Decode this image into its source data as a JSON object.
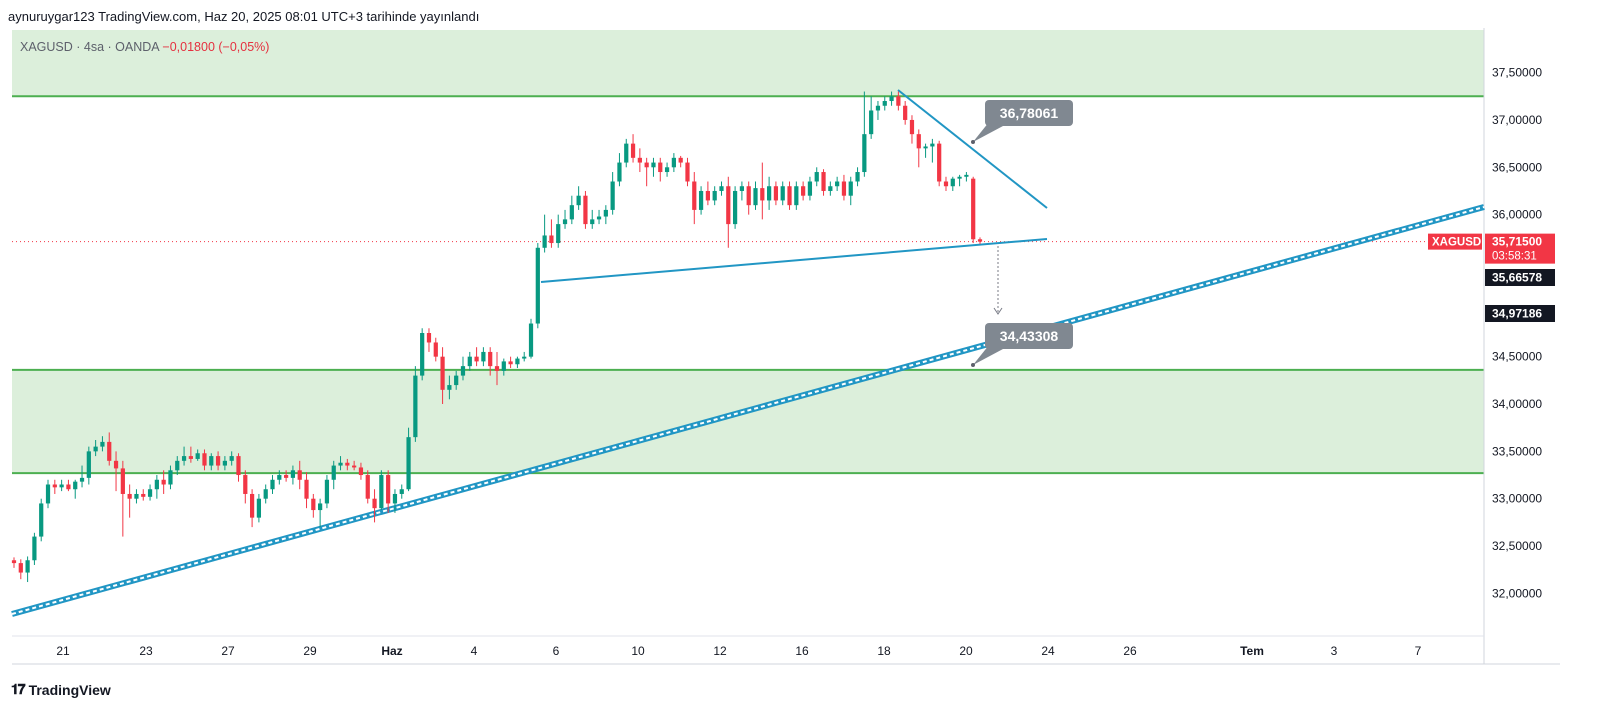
{
  "header": {
    "publisher": "aynuruygar123 TradingView.com, Haz 20, 2025 08:01 UTC+3 tarihinde yayınlandı"
  },
  "symbol_info": {
    "name": "XAGUSD · 4sa · OANDA",
    "change": "−0,01800 (−0,05%)"
  },
  "footer": {
    "brand": "TradingView"
  },
  "colors": {
    "up": "#089981",
    "down": "#f23645",
    "zone_fill": "#dcefdb",
    "zone_line": "#4caf50",
    "trend": "#2196c4",
    "callout": "#808891"
  },
  "chart_data": {
    "type": "candlestick",
    "ylim": [
      31.55,
      37.95
    ],
    "y_ticks": [
      "37,50000",
      "37,00000",
      "36,50000",
      "36,00000",
      "34,50000",
      "34,00000",
      "33,50000",
      "33,00000",
      "32,50000",
      "32,00000"
    ],
    "x_ticks": [
      "21",
      "23",
      "27",
      "29",
      "Haz",
      "4",
      "6",
      "10",
      "12",
      "16",
      "18",
      "20",
      "24",
      "26",
      "Tem",
      "3",
      "7"
    ],
    "zones": [
      {
        "from": 37.25,
        "to": 37.95
      },
      {
        "from": 33.27,
        "to": 34.36
      }
    ],
    "support_resistance_lines": [
      37.25,
      34.36,
      33.27
    ],
    "annotations": [
      {
        "label": "36,78061",
        "value": 36.78061
      },
      {
        "label": "34,43308",
        "value": 34.43308
      }
    ],
    "price_labels": [
      {
        "label": "XAGUSD",
        "kind": "symbol"
      },
      {
        "label": "35,71500",
        "value": 35.715,
        "kind": "last"
      },
      {
        "label": "03:58:31",
        "kind": "countdown"
      },
      {
        "label": "35,66578",
        "value": 35.66578,
        "kind": "mark"
      },
      {
        "label": "34,97186",
        "value": 34.97186,
        "kind": "mark"
      }
    ],
    "candles": [
      {
        "o": 32.35,
        "h": 32.38,
        "l": 32.27,
        "c": 32.32
      },
      {
        "o": 32.32,
        "h": 32.36,
        "l": 32.15,
        "c": 32.22
      },
      {
        "o": 32.22,
        "h": 32.39,
        "l": 32.12,
        "c": 32.35
      },
      {
        "o": 32.35,
        "h": 32.64,
        "l": 32.3,
        "c": 32.6
      },
      {
        "o": 32.6,
        "h": 33.0,
        "l": 32.55,
        "c": 32.95
      },
      {
        "o": 32.95,
        "h": 33.2,
        "l": 32.9,
        "c": 33.15
      },
      {
        "o": 33.15,
        "h": 33.2,
        "l": 33.05,
        "c": 33.12
      },
      {
        "o": 33.12,
        "h": 33.2,
        "l": 33.08,
        "c": 33.15
      },
      {
        "o": 33.15,
        "h": 33.2,
        "l": 33.08,
        "c": 33.1
      },
      {
        "o": 33.1,
        "h": 33.2,
        "l": 33.0,
        "c": 33.18
      },
      {
        "o": 33.18,
        "h": 33.35,
        "l": 33.12,
        "c": 33.22
      },
      {
        "o": 33.22,
        "h": 33.55,
        "l": 33.15,
        "c": 33.5
      },
      {
        "o": 33.5,
        "h": 33.62,
        "l": 33.45,
        "c": 33.55
      },
      {
        "o": 33.55,
        "h": 33.66,
        "l": 33.5,
        "c": 33.6
      },
      {
        "o": 33.6,
        "h": 33.7,
        "l": 33.35,
        "c": 33.4
      },
      {
        "o": 33.4,
        "h": 33.5,
        "l": 33.08,
        "c": 33.32
      },
      {
        "o": 33.32,
        "h": 33.4,
        "l": 32.6,
        "c": 33.05
      },
      {
        "o": 33.05,
        "h": 33.15,
        "l": 32.8,
        "c": 33.0
      },
      {
        "o": 33.0,
        "h": 33.1,
        "l": 32.95,
        "c": 33.05
      },
      {
        "o": 33.05,
        "h": 33.1,
        "l": 32.98,
        "c": 33.02
      },
      {
        "o": 33.02,
        "h": 33.15,
        "l": 32.98,
        "c": 33.1
      },
      {
        "o": 33.1,
        "h": 33.25,
        "l": 33.0,
        "c": 33.2
      },
      {
        "o": 33.2,
        "h": 33.3,
        "l": 33.05,
        "c": 33.15
      },
      {
        "o": 33.15,
        "h": 33.35,
        "l": 33.1,
        "c": 33.3
      },
      {
        "o": 33.3,
        "h": 33.45,
        "l": 33.25,
        "c": 33.4
      },
      {
        "o": 33.4,
        "h": 33.55,
        "l": 33.35,
        "c": 33.45
      },
      {
        "o": 33.45,
        "h": 33.55,
        "l": 33.38,
        "c": 33.42
      },
      {
        "o": 33.42,
        "h": 33.52,
        "l": 33.4,
        "c": 33.48
      },
      {
        "o": 33.48,
        "h": 33.52,
        "l": 33.3,
        "c": 33.35
      },
      {
        "o": 33.35,
        "h": 33.48,
        "l": 33.3,
        "c": 33.45
      },
      {
        "o": 33.45,
        "h": 33.5,
        "l": 33.3,
        "c": 33.35
      },
      {
        "o": 33.35,
        "h": 33.45,
        "l": 33.3,
        "c": 33.4
      },
      {
        "o": 33.4,
        "h": 33.5,
        "l": 33.35,
        "c": 33.45
      },
      {
        "o": 33.45,
        "h": 33.48,
        "l": 33.18,
        "c": 33.25
      },
      {
        "o": 33.25,
        "h": 33.3,
        "l": 32.95,
        "c": 33.05
      },
      {
        "o": 33.05,
        "h": 33.1,
        "l": 32.7,
        "c": 32.8
      },
      {
        "o": 32.8,
        "h": 33.05,
        "l": 32.75,
        "c": 33.0
      },
      {
        "o": 33.0,
        "h": 33.15,
        "l": 32.95,
        "c": 33.1
      },
      {
        "o": 33.1,
        "h": 33.25,
        "l": 33.05,
        "c": 33.2
      },
      {
        "o": 33.2,
        "h": 33.3,
        "l": 33.15,
        "c": 33.25
      },
      {
        "o": 33.25,
        "h": 33.3,
        "l": 33.18,
        "c": 33.22
      },
      {
        "o": 33.22,
        "h": 33.35,
        "l": 33.15,
        "c": 33.3
      },
      {
        "o": 33.3,
        "h": 33.4,
        "l": 33.1,
        "c": 33.2
      },
      {
        "o": 33.2,
        "h": 33.28,
        "l": 32.9,
        "c": 33.0
      },
      {
        "o": 33.0,
        "h": 33.05,
        "l": 32.8,
        "c": 32.88
      },
      {
        "o": 32.88,
        "h": 33.0,
        "l": 32.7,
        "c": 32.95
      },
      {
        "o": 32.95,
        "h": 33.25,
        "l": 32.9,
        "c": 33.2
      },
      {
        "o": 33.2,
        "h": 33.4,
        "l": 33.1,
        "c": 33.35
      },
      {
        "o": 33.35,
        "h": 33.45,
        "l": 33.3,
        "c": 33.38
      },
      {
        "o": 33.38,
        "h": 33.42,
        "l": 33.3,
        "c": 33.35
      },
      {
        "o": 33.35,
        "h": 33.4,
        "l": 33.3,
        "c": 33.33
      },
      {
        "o": 33.33,
        "h": 33.38,
        "l": 33.2,
        "c": 33.25
      },
      {
        "o": 33.25,
        "h": 33.3,
        "l": 32.95,
        "c": 33.0
      },
      {
        "o": 33.0,
        "h": 33.1,
        "l": 32.75,
        "c": 32.9
      },
      {
        "o": 32.9,
        "h": 33.3,
        "l": 32.88,
        "c": 33.25
      },
      {
        "o": 33.25,
        "h": 33.3,
        "l": 32.85,
        "c": 32.95
      },
      {
        "o": 32.95,
        "h": 33.1,
        "l": 32.85,
        "c": 33.05
      },
      {
        "o": 33.05,
        "h": 33.15,
        "l": 33.0,
        "c": 33.1
      },
      {
        "o": 33.1,
        "h": 33.75,
        "l": 33.08,
        "c": 33.65
      },
      {
        "o": 33.65,
        "h": 34.4,
        "l": 33.6,
        "c": 34.3
      },
      {
        "o": 34.3,
        "h": 34.8,
        "l": 34.25,
        "c": 34.75
      },
      {
        "o": 34.75,
        "h": 34.8,
        "l": 34.55,
        "c": 34.65
      },
      {
        "o": 34.65,
        "h": 34.7,
        "l": 34.45,
        "c": 34.5
      },
      {
        "o": 34.5,
        "h": 34.6,
        "l": 34.0,
        "c": 34.15
      },
      {
        "o": 34.15,
        "h": 34.3,
        "l": 34.05,
        "c": 34.2
      },
      {
        "o": 34.2,
        "h": 34.35,
        "l": 34.15,
        "c": 34.3
      },
      {
        "o": 34.3,
        "h": 34.5,
        "l": 34.25,
        "c": 34.4
      },
      {
        "o": 34.4,
        "h": 34.55,
        "l": 34.35,
        "c": 34.5
      },
      {
        "o": 34.5,
        "h": 34.6,
        "l": 34.4,
        "c": 34.45
      },
      {
        "o": 34.45,
        "h": 34.6,
        "l": 34.4,
        "c": 34.55
      },
      {
        "o": 34.55,
        "h": 34.6,
        "l": 34.3,
        "c": 34.4
      },
      {
        "o": 34.4,
        "h": 34.55,
        "l": 34.2,
        "c": 34.35
      },
      {
        "o": 34.35,
        "h": 34.48,
        "l": 34.3,
        "c": 34.45
      },
      {
        "o": 34.45,
        "h": 34.5,
        "l": 34.38,
        "c": 34.42
      },
      {
        "o": 34.42,
        "h": 34.5,
        "l": 34.38,
        "c": 34.48
      },
      {
        "o": 34.48,
        "h": 34.55,
        "l": 34.45,
        "c": 34.5
      },
      {
        "o": 34.5,
        "h": 34.9,
        "l": 34.48,
        "c": 34.85
      },
      {
        "o": 34.85,
        "h": 35.7,
        "l": 34.8,
        "c": 35.65
      },
      {
        "o": 35.65,
        "h": 36.0,
        "l": 35.6,
        "c": 35.78
      },
      {
        "o": 35.78,
        "h": 35.95,
        "l": 35.65,
        "c": 35.7
      },
      {
        "o": 35.7,
        "h": 36.0,
        "l": 35.65,
        "c": 35.9
      },
      {
        "o": 35.9,
        "h": 36.05,
        "l": 35.85,
        "c": 35.95
      },
      {
        "o": 35.95,
        "h": 36.2,
        "l": 35.9,
        "c": 36.1
      },
      {
        "o": 36.1,
        "h": 36.3,
        "l": 36.05,
        "c": 36.2
      },
      {
        "o": 36.2,
        "h": 36.25,
        "l": 35.85,
        "c": 35.9
      },
      {
        "o": 35.9,
        "h": 36.05,
        "l": 35.85,
        "c": 35.95
      },
      {
        "o": 35.95,
        "h": 36.05,
        "l": 35.9,
        "c": 35.98
      },
      {
        "o": 35.98,
        "h": 36.1,
        "l": 35.9,
        "c": 36.05
      },
      {
        "o": 36.05,
        "h": 36.45,
        "l": 36.0,
        "c": 36.35
      },
      {
        "o": 36.35,
        "h": 36.65,
        "l": 36.3,
        "c": 36.55
      },
      {
        "o": 36.55,
        "h": 36.8,
        "l": 36.5,
        "c": 36.75
      },
      {
        "o": 36.75,
        "h": 36.85,
        "l": 36.55,
        "c": 36.6
      },
      {
        "o": 36.6,
        "h": 36.7,
        "l": 36.45,
        "c": 36.55
      },
      {
        "o": 36.55,
        "h": 36.6,
        "l": 36.3,
        "c": 36.5
      },
      {
        "o": 36.5,
        "h": 36.6,
        "l": 36.4,
        "c": 36.55
      },
      {
        "o": 36.55,
        "h": 36.6,
        "l": 36.35,
        "c": 36.45
      },
      {
        "o": 36.45,
        "h": 36.55,
        "l": 36.4,
        "c": 36.5
      },
      {
        "o": 36.5,
        "h": 36.65,
        "l": 36.45,
        "c": 36.6
      },
      {
        "o": 36.6,
        "h": 36.62,
        "l": 36.5,
        "c": 36.55
      },
      {
        "o": 36.55,
        "h": 36.6,
        "l": 36.3,
        "c": 36.35
      },
      {
        "o": 36.35,
        "h": 36.45,
        "l": 35.9,
        "c": 36.05
      },
      {
        "o": 36.05,
        "h": 36.3,
        "l": 36.0,
        "c": 36.25
      },
      {
        "o": 36.25,
        "h": 36.35,
        "l": 36.1,
        "c": 36.15
      },
      {
        "o": 36.15,
        "h": 36.3,
        "l": 36.1,
        "c": 36.25
      },
      {
        "o": 36.25,
        "h": 36.35,
        "l": 36.2,
        "c": 36.3
      },
      {
        "o": 36.3,
        "h": 36.4,
        "l": 35.65,
        "c": 35.9
      },
      {
        "o": 35.9,
        "h": 36.3,
        "l": 35.85,
        "c": 36.25
      },
      {
        "o": 36.25,
        "h": 36.35,
        "l": 36.15,
        "c": 36.3
      },
      {
        "o": 36.3,
        "h": 36.35,
        "l": 36.0,
        "c": 36.1
      },
      {
        "o": 36.1,
        "h": 36.35,
        "l": 36.05,
        "c": 36.28
      },
      {
        "o": 36.28,
        "h": 36.55,
        "l": 35.95,
        "c": 36.15
      },
      {
        "o": 36.15,
        "h": 36.4,
        "l": 36.05,
        "c": 36.3
      },
      {
        "o": 36.3,
        "h": 36.35,
        "l": 36.1,
        "c": 36.15
      },
      {
        "o": 36.15,
        "h": 36.35,
        "l": 36.1,
        "c": 36.3
      },
      {
        "o": 36.3,
        "h": 36.35,
        "l": 36.05,
        "c": 36.1
      },
      {
        "o": 36.1,
        "h": 36.35,
        "l": 36.05,
        "c": 36.3
      },
      {
        "o": 36.3,
        "h": 36.35,
        "l": 36.15,
        "c": 36.2
      },
      {
        "o": 36.2,
        "h": 36.4,
        "l": 36.15,
        "c": 36.35
      },
      {
        "o": 36.35,
        "h": 36.5,
        "l": 36.3,
        "c": 36.45
      },
      {
        "o": 36.45,
        "h": 36.48,
        "l": 36.2,
        "c": 36.25
      },
      {
        "o": 36.25,
        "h": 36.35,
        "l": 36.2,
        "c": 36.3
      },
      {
        "o": 36.3,
        "h": 36.4,
        "l": 36.25,
        "c": 36.35
      },
      {
        "o": 36.35,
        "h": 36.42,
        "l": 36.15,
        "c": 36.2
      },
      {
        "o": 36.2,
        "h": 36.4,
        "l": 36.1,
        "c": 36.35
      },
      {
        "o": 36.35,
        "h": 36.5,
        "l": 36.3,
        "c": 36.45
      },
      {
        "o": 36.45,
        "h": 37.3,
        "l": 36.4,
        "c": 36.85
      },
      {
        "o": 36.85,
        "h": 37.25,
        "l": 36.8,
        "c": 37.1
      },
      {
        "o": 37.1,
        "h": 37.2,
        "l": 37.0,
        "c": 37.15
      },
      {
        "o": 37.15,
        "h": 37.25,
        "l": 37.1,
        "c": 37.2
      },
      {
        "o": 37.2,
        "h": 37.3,
        "l": 37.15,
        "c": 37.25
      },
      {
        "o": 37.25,
        "h": 37.3,
        "l": 37.1,
        "c": 37.15
      },
      {
        "o": 37.15,
        "h": 37.2,
        "l": 36.95,
        "c": 37.0
      },
      {
        "o": 37.0,
        "h": 37.05,
        "l": 36.75,
        "c": 36.85
      },
      {
        "o": 36.85,
        "h": 36.9,
        "l": 36.5,
        "c": 36.7
      },
      {
        "o": 36.7,
        "h": 36.75,
        "l": 36.6,
        "c": 36.72
      },
      {
        "o": 36.72,
        "h": 36.8,
        "l": 36.55,
        "c": 36.75
      },
      {
        "o": 36.75,
        "h": 36.78,
        "l": 36.3,
        "c": 36.35
      },
      {
        "o": 36.35,
        "h": 36.4,
        "l": 36.25,
        "c": 36.3
      },
      {
        "o": 36.3,
        "h": 36.4,
        "l": 36.25,
        "c": 36.38
      },
      {
        "o": 36.38,
        "h": 36.42,
        "l": 36.3,
        "c": 36.4
      },
      {
        "o": 36.4,
        "h": 36.45,
        "l": 36.35,
        "c": 36.42
      },
      {
        "o": 36.38,
        "h": 36.4,
        "l": 35.7,
        "c": 35.74
      },
      {
        "o": 35.74,
        "h": 35.76,
        "l": 35.69,
        "c": 35.715
      }
    ]
  }
}
